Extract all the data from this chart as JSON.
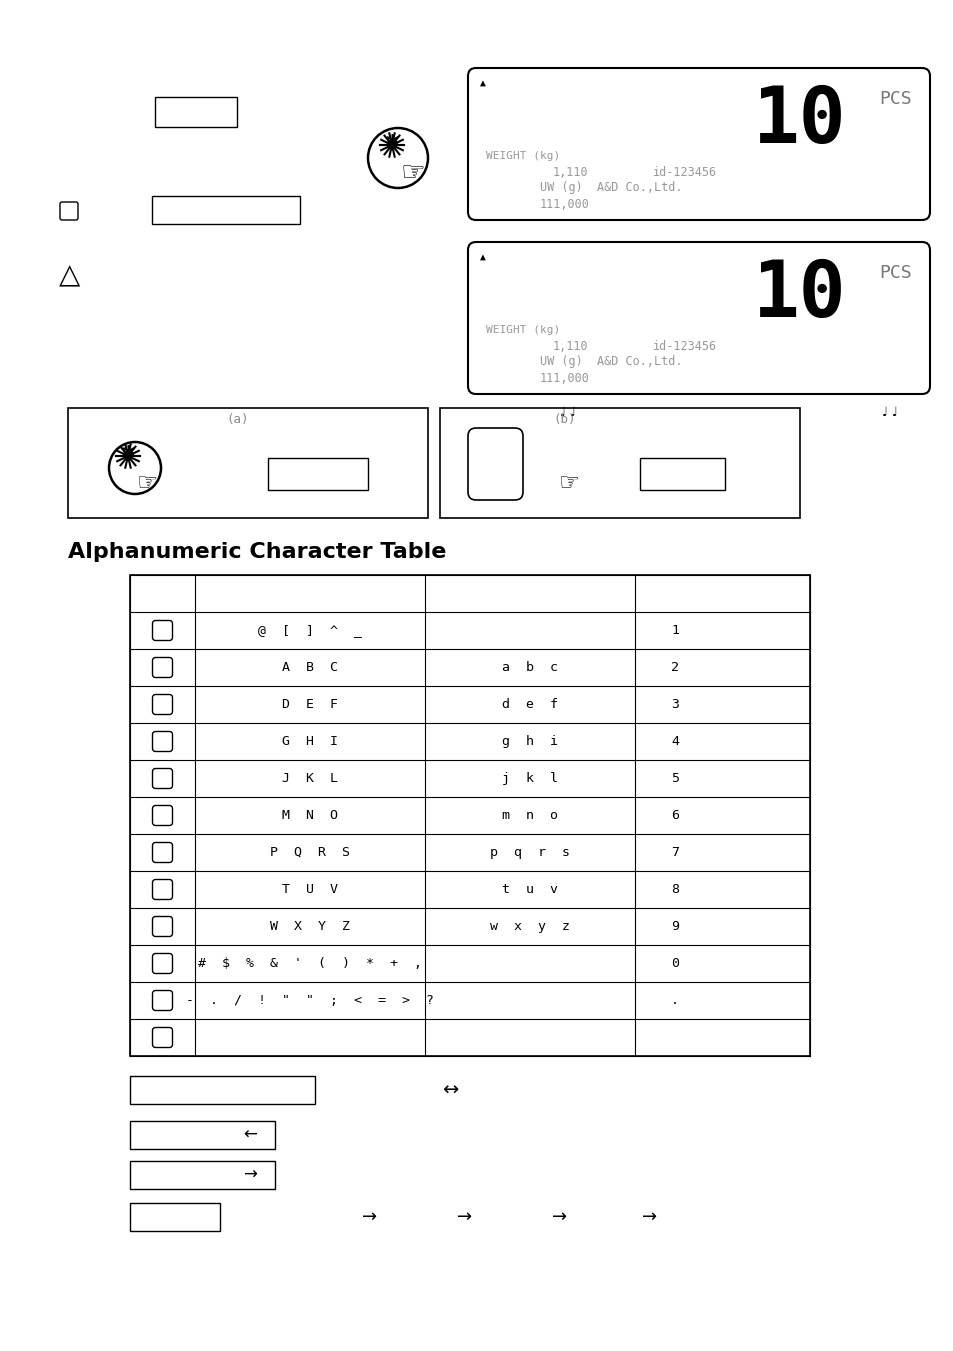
{
  "title": "Alphanumeric Character Table",
  "bg_color": "#ffffff",
  "table_col1": [
    "@  [ ]  ^  _",
    "A  B  C",
    "D  E  F",
    "G  H  I",
    "J  K  L",
    "M  N  O",
    "P  Q  R  S",
    "T  U  V",
    "W  X  Y  Z",
    "#  $  %  &  '  ( )  *  +  ,",
    "-.  / !  \"  \"  ;  <  =  >  ?",
    ""
  ],
  "table_col2": [
    "",
    "a  b  c",
    "d  e  f",
    "g  h  i",
    "j  k  l",
    "m  n  o",
    "p  q  r  s",
    "t  u  v",
    "w  x  y  z",
    "",
    "",
    ""
  ],
  "table_col3": [
    "1",
    "2",
    "3",
    "4",
    "5",
    "6",
    "7",
    "8",
    "9",
    "0",
    ".",
    ""
  ],
  "disp_weight": "WEIGHT (kg)",
  "disp_val1": "1,110",
  "disp_id": "id-123456",
  "disp_uw": "UW (g)  A&D Co.,Ltd.",
  "disp_total": "111,000",
  "disp_big": "10",
  "disp_pcs": "PCS"
}
